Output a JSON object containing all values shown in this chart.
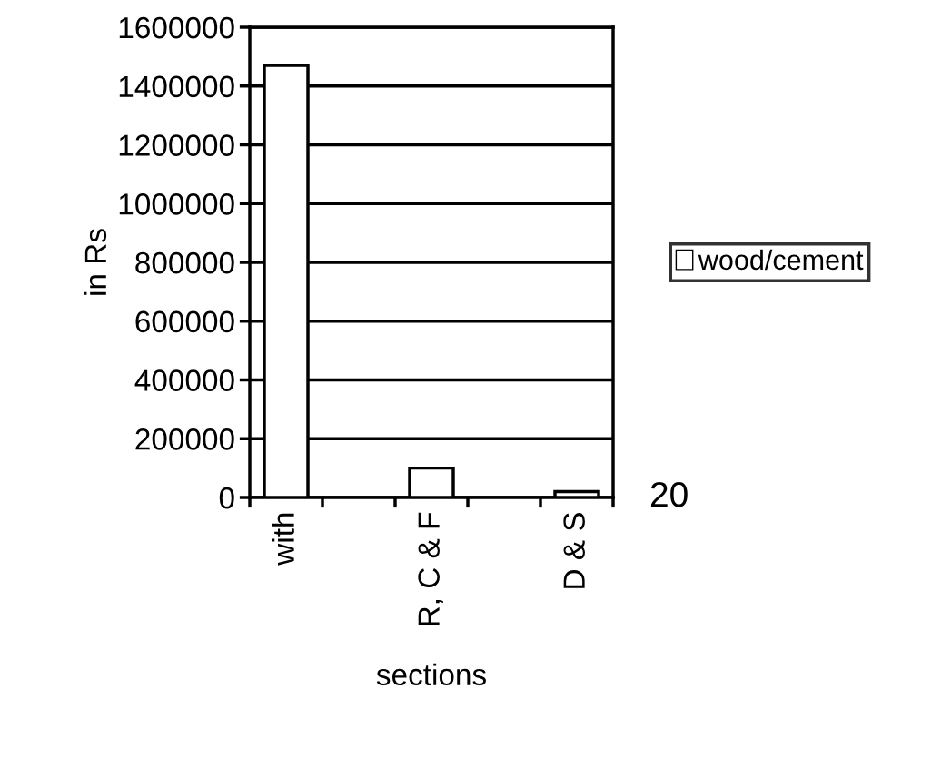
{
  "chart_data": {
    "type": "bar",
    "xlabel": "sections",
    "ylabel": "in Rs",
    "categories": [
      "with",
      null,
      "R, C & F",
      null,
      "D & S"
    ],
    "series": [
      {
        "name": "wood/cement",
        "color": "#ffffff",
        "values": [
          1470000,
          null,
          100000,
          null,
          20000
        ]
      }
    ],
    "ylim": [
      0,
      1600000
    ],
    "yticks": [
      0,
      200000,
      400000,
      600000,
      800000,
      1000000,
      1200000,
      1400000,
      1600000
    ],
    "grid": "y",
    "legend": "right",
    "annotations": [
      "20"
    ]
  }
}
